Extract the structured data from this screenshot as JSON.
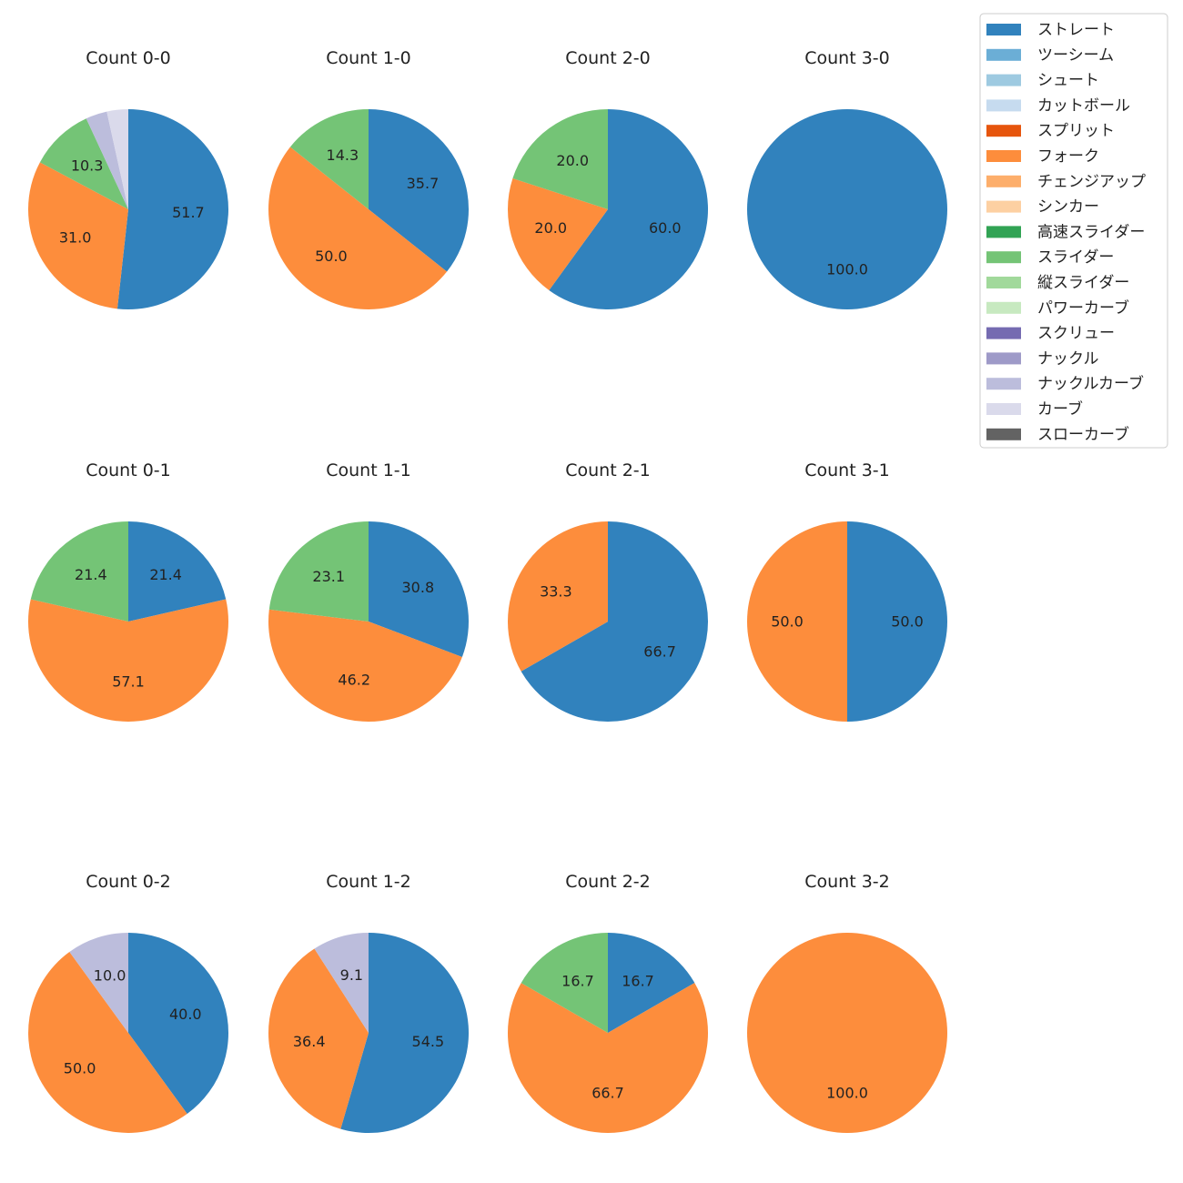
{
  "pitch_types": [
    {
      "name": "ストレート",
      "color": "#3182bd"
    },
    {
      "name": "ツーシーム",
      "color": "#6baed6"
    },
    {
      "name": "シュート",
      "color": "#9ecae1"
    },
    {
      "name": "カットボール",
      "color": "#c6dbef"
    },
    {
      "name": "スプリット",
      "color": "#e6550d"
    },
    {
      "name": "フォーク",
      "color": "#fd8d3c"
    },
    {
      "name": "チェンジアップ",
      "color": "#fdae6b"
    },
    {
      "name": "シンカー",
      "color": "#fdd0a2"
    },
    {
      "name": "高速スライダー",
      "color": "#31a354"
    },
    {
      "name": "スライダー",
      "color": "#74c476"
    },
    {
      "name": "縦スライダー",
      "color": "#a1d99b"
    },
    {
      "name": "パワーカーブ",
      "color": "#c7e9c0"
    },
    {
      "name": "スクリュー",
      "color": "#756bb1"
    },
    {
      "name": "ナックル",
      "color": "#9e9ac8"
    },
    {
      "name": "ナックルカーブ",
      "color": "#bcbddc"
    },
    {
      "name": "カーブ",
      "color": "#dadaeb"
    },
    {
      "name": "スローカーブ",
      "color": "#636363"
    }
  ],
  "chart_data": [
    {
      "type": "pie",
      "title": "Count 0-0",
      "slices": [
        {
          "pitch": "ストレート",
          "value": 51.7,
          "label": "51.7"
        },
        {
          "pitch": "フォーク",
          "value": 31.0,
          "label": "31.0"
        },
        {
          "pitch": "スライダー",
          "value": 10.3,
          "label": "10.3"
        },
        {
          "pitch": "ナックルカーブ",
          "value": 3.45,
          "label": ""
        },
        {
          "pitch": "カーブ",
          "value": 3.45,
          "label": ""
        }
      ]
    },
    {
      "type": "pie",
      "title": "Count 1-0",
      "slices": [
        {
          "pitch": "ストレート",
          "value": 35.7,
          "label": "35.7"
        },
        {
          "pitch": "フォーク",
          "value": 50.0,
          "label": "50.0"
        },
        {
          "pitch": "スライダー",
          "value": 14.3,
          "label": "14.3"
        }
      ]
    },
    {
      "type": "pie",
      "title": "Count 2-0",
      "slices": [
        {
          "pitch": "ストレート",
          "value": 60.0,
          "label": "60.0"
        },
        {
          "pitch": "フォーク",
          "value": 20.0,
          "label": "20.0"
        },
        {
          "pitch": "スライダー",
          "value": 20.0,
          "label": "20.0"
        }
      ]
    },
    {
      "type": "pie",
      "title": "Count 3-0",
      "slices": [
        {
          "pitch": "ストレート",
          "value": 100.0,
          "label": "100.0"
        }
      ]
    },
    {
      "type": "pie",
      "title": "Count 0-1",
      "slices": [
        {
          "pitch": "ストレート",
          "value": 21.4,
          "label": "21.4"
        },
        {
          "pitch": "フォーク",
          "value": 57.1,
          "label": "57.1"
        },
        {
          "pitch": "スライダー",
          "value": 21.4,
          "label": "21.4"
        }
      ]
    },
    {
      "type": "pie",
      "title": "Count 1-1",
      "slices": [
        {
          "pitch": "ストレート",
          "value": 30.8,
          "label": "30.8"
        },
        {
          "pitch": "フォーク",
          "value": 46.2,
          "label": "46.2"
        },
        {
          "pitch": "スライダー",
          "value": 23.1,
          "label": "23.1"
        }
      ]
    },
    {
      "type": "pie",
      "title": "Count 2-1",
      "slices": [
        {
          "pitch": "ストレート",
          "value": 66.7,
          "label": "66.7"
        },
        {
          "pitch": "フォーク",
          "value": 33.3,
          "label": "33.3"
        }
      ]
    },
    {
      "type": "pie",
      "title": "Count 3-1",
      "slices": [
        {
          "pitch": "ストレート",
          "value": 50.0,
          "label": "50.0"
        },
        {
          "pitch": "フォーク",
          "value": 50.0,
          "label": "50.0"
        }
      ]
    },
    {
      "type": "pie",
      "title": "Count 0-2",
      "slices": [
        {
          "pitch": "ストレート",
          "value": 40.0,
          "label": "40.0"
        },
        {
          "pitch": "フォーク",
          "value": 50.0,
          "label": "50.0"
        },
        {
          "pitch": "ナックルカーブ",
          "value": 10.0,
          "label": "10.0"
        }
      ]
    },
    {
      "type": "pie",
      "title": "Count 1-2",
      "slices": [
        {
          "pitch": "ストレート",
          "value": 54.5,
          "label": "54.5"
        },
        {
          "pitch": "フォーク",
          "value": 36.4,
          "label": "36.4"
        },
        {
          "pitch": "ナックルカーブ",
          "value": 9.1,
          "label": "9.1"
        }
      ]
    },
    {
      "type": "pie",
      "title": "Count 2-2",
      "slices": [
        {
          "pitch": "ストレート",
          "value": 16.7,
          "label": "16.7"
        },
        {
          "pitch": "フォーク",
          "value": 66.7,
          "label": "66.7"
        },
        {
          "pitch": "スライダー",
          "value": 16.7,
          "label": "16.7"
        }
      ]
    },
    {
      "type": "pie",
      "title": "Count 3-2",
      "slices": [
        {
          "pitch": "フォーク",
          "value": 100.0,
          "label": "100.0"
        }
      ]
    }
  ]
}
